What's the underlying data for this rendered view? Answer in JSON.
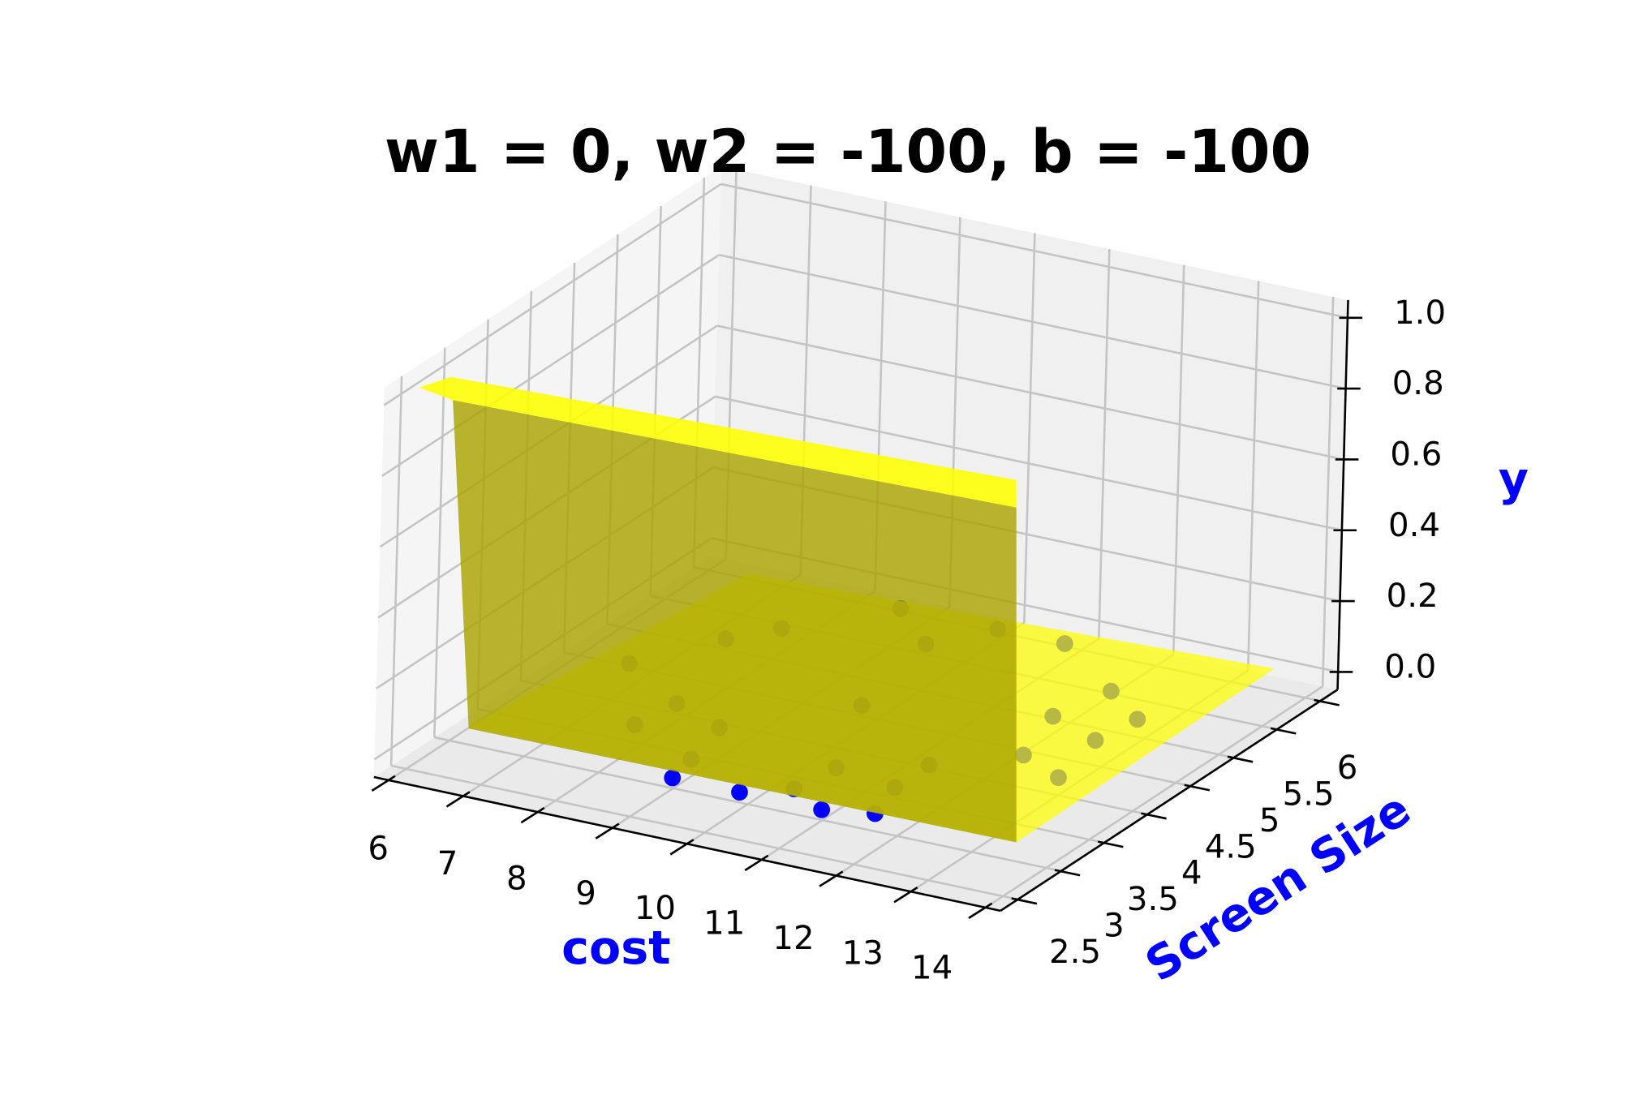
{
  "chart_data": {
    "type": "scatter3d",
    "title": "w1 = 0, w2 = -100, b = -100",
    "xlabel": "cost",
    "ylabel": "Screen Size",
    "zlabel": "y",
    "label_color": "#0000ff",
    "xlim": [
      5.8,
      14.2
    ],
    "ylim": [
      2.3,
      6.2
    ],
    "zlim": [
      -0.05,
      1.05
    ],
    "xticks": [
      6,
      7,
      8,
      9,
      10,
      11,
      12,
      13,
      14
    ],
    "yticks": [
      2.5,
      3,
      3.5,
      4,
      4.5,
      5,
      5.5,
      6
    ],
    "zticks": [
      {
        "value": 0,
        "label": "0.0"
      },
      0.2,
      0.4,
      0.6,
      0.8,
      {
        "value": 1,
        "label": "1.0"
      }
    ],
    "grid": true,
    "series": [
      {
        "color": "#0000ff",
        "x": [
          9.1,
          10.0,
          10.5,
          11.1,
          11.7,
          9.9,
          12.0,
          11.0,
          12.3,
          6.9,
          7.5,
          8.8,
          9.6,
          9.0,
          10.6,
          11.5,
          12.8,
          12.2,
          10.1,
          7.9,
          8.0,
          8.8,
          13.0,
          12.9,
          7.9,
          11.5
        ],
        "y": [
          2.9,
          2.9,
          3.1,
          2.9,
          3.0,
          4.4,
          4.8,
          5.8,
          4.2,
          4.3,
          4.9,
          5.8,
          5.4,
          3.2,
          3.5,
          3.4,
          4.6,
          5.3,
          5.8,
          5.2,
          3.9,
          3.7,
          4.0,
          5.0,
          3.5,
          3.8
        ],
        "z": [
          0,
          0,
          0,
          0,
          0,
          0,
          0,
          0,
          0,
          0,
          0,
          0,
          0,
          0,
          0,
          0,
          0,
          0,
          0,
          0,
          0,
          0,
          0,
          0,
          0,
          0
        ]
      }
    ]
  }
}
